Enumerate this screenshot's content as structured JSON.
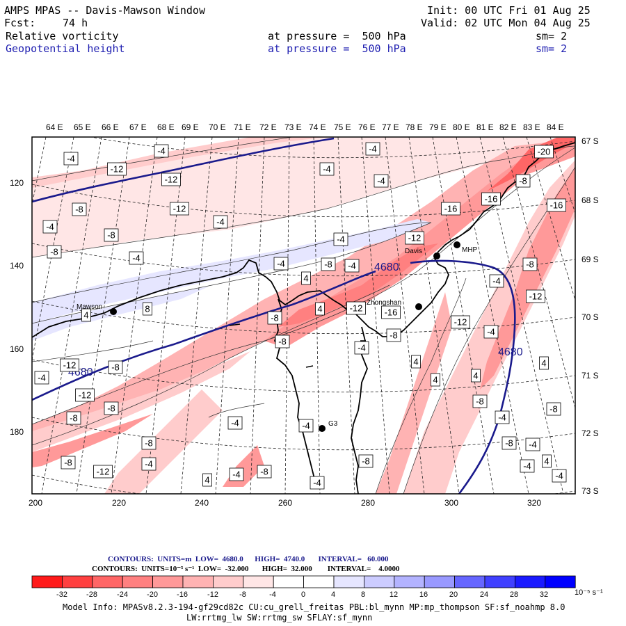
{
  "header": {
    "title": "AMPS MPAS -- Davis-Mawson Window",
    "init": "Init: 00 UTC Fri 01 Aug 25",
    "fcst_label": "Fcst:",
    "fcst_value": "74 h",
    "valid": "Valid: 02 UTC Mon 04 Aug 25",
    "field1_name": "Relative vorticity",
    "field1_level": "at pressure =  500 hPa",
    "field1_sm": "sm= 2",
    "field2_name": "Geopotential height",
    "field2_level": "at pressure =  500 hPa",
    "field2_sm": "sm= 2"
  },
  "map": {
    "lon_labels": [
      "64 E",
      "65 E",
      "66 E",
      "67 E",
      "68 E",
      "69 E",
      "70 E",
      "71 E",
      "72 E",
      "73 E",
      "74 E",
      "75 E",
      "76 E",
      "77 E",
      "78 E",
      "79 E",
      "80 E",
      "81 E",
      "82 E",
      "83 E",
      "84 E"
    ],
    "lat_labels": [
      "67 S",
      "68 S",
      "69 S",
      "70 S",
      "71 S",
      "72 S",
      "73 S"
    ],
    "x_ticks": [
      "200",
      "220",
      "240",
      "260",
      "280",
      "300",
      "320"
    ],
    "y_ticks": [
      "120",
      "140",
      "160",
      "180"
    ],
    "stations": [
      "Mawson",
      "Davis",
      "Zhongshan",
      "MHP",
      "G3"
    ],
    "height_contours": [
      "4680",
      "4680",
      "4680"
    ],
    "vort_labels": [
      "-4",
      "-4",
      "-4",
      "-12",
      "-4",
      "-4",
      "-4",
      "-12",
      "-12",
      "-8",
      "-4",
      "-20",
      "-8",
      "-4",
      "-16",
      "-16",
      "-16",
      "-8",
      "-12",
      "-4",
      "-8",
      "-8",
      "-4",
      "4",
      "-4",
      "4",
      "8",
      "-8",
      "-8",
      "-12",
      "-4",
      "-8",
      "4",
      "-16",
      "-12",
      "-8",
      "-12",
      "-4",
      "4",
      "-4",
      "-12",
      "-8",
      "-12",
      "-8",
      "4",
      "4",
      "-8",
      "-8",
      "-4",
      "-8",
      "-4",
      "-4",
      "-8",
      "-4",
      "-4",
      "-8",
      "-12",
      "-8",
      "-4",
      "-8",
      "-8",
      "-4",
      "4",
      "4",
      "-4",
      "-4",
      "-4",
      "4"
    ]
  },
  "colorbar": {
    "units_line_1": "CONTOURS:  UNITS=m  LOW=  4680.0      HIGH=  4740.0       INTERVAL=   60.000",
    "units_line_2": "CONTOURS:  UNITS=10⁻⁵ s⁻¹  LOW=  -32.000       HIGH=  32.000        INTERVAL=    4.0000",
    "tick_labels": [
      "-32",
      "-28",
      "-24",
      "-20",
      "-16",
      "-12",
      "-8",
      "-4",
      "0",
      "4",
      "8",
      "12",
      "16",
      "20",
      "24",
      "28",
      "32"
    ],
    "units": "10⁻⁵ s⁻¹",
    "colors": [
      "#ff1a1a",
      "#ff4040",
      "#ff6666",
      "#ff8080",
      "#ff9999",
      "#ffb3b3",
      "#ffcccc",
      "#ffe6e6",
      "#ffffff",
      "#ffffff",
      "#e6e6ff",
      "#ccccff",
      "#b3b3ff",
      "#9999ff",
      "#6666ff",
      "#4040ff",
      "#1a1aff",
      "#0000ff"
    ]
  },
  "footer": {
    "model_info_line1": "Model Info: MPASv8.2.3-194-gf29cd82c CU:cu_grell_freitas PBL:bl_mynn MP:mp_thompson SF:sf_noahmp 8.0",
    "model_info_line2": "LW:rrtmg_lw SW:rrtmg_sw SFLAY:sf_mynn"
  }
}
